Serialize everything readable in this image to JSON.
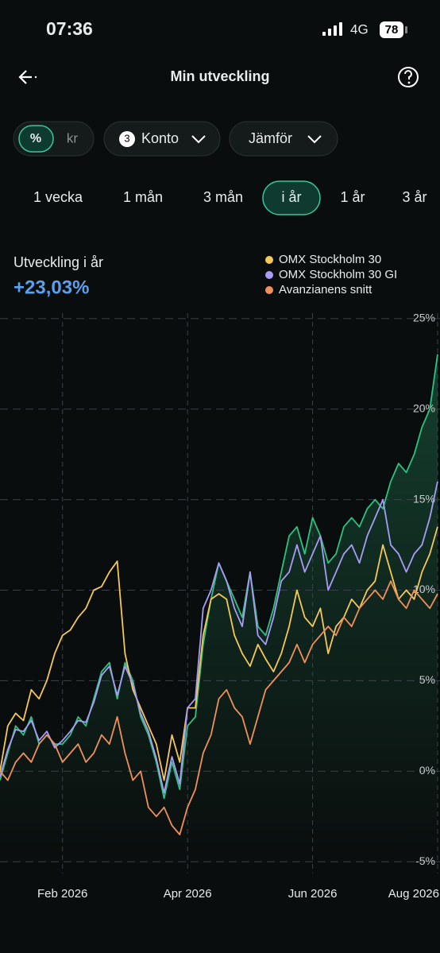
{
  "ui": {
    "status_time": "07:36",
    "network": "4G",
    "battery": "78",
    "title": "Min utveckling",
    "toggle": [
      "%",
      "kr"
    ],
    "account_count": "3",
    "account_label": "Konto",
    "compare_label": "Jämför",
    "periods": [
      "1 vecka",
      "1 mån",
      "3 mån",
      "i år",
      "1 år",
      "3 år"
    ],
    "summary_label": "Utveckling i år",
    "summary_value": "+23,03%"
  },
  "chart_data": {
    "type": "line",
    "categories": [
      null,
      null,
      null,
      null,
      null,
      null,
      null,
      null,
      "Feb 2026",
      null,
      null,
      null,
      null,
      null,
      null,
      null,
      null,
      null,
      null,
      null,
      null,
      null,
      null,
      null,
      "Apr 2026",
      null,
      null,
      null,
      null,
      null,
      null,
      null,
      null,
      null,
      null,
      null,
      null,
      null,
      null,
      null,
      "Jun 2026",
      null,
      null,
      null,
      null,
      null,
      null,
      null,
      null,
      null,
      null,
      null,
      null,
      null,
      null,
      null,
      "Aug 2026"
    ],
    "series": [
      {
        "color": "#2fc082",
        "fill": true,
        "values": [
          -0.5,
          1,
          2.5,
          2,
          3,
          1.5,
          2,
          1.5,
          1.5,
          2,
          3,
          2.5,
          4,
          5.5,
          6,
          4,
          6,
          5,
          3,
          2,
          0.5,
          -1.5,
          0.5,
          -1,
          2.5,
          3,
          7,
          9.5,
          11.5,
          10.5,
          9.5,
          8.5,
          11,
          8,
          7.5,
          9,
          11,
          13,
          13.5,
          12,
          14,
          13,
          11.5,
          12,
          13.5,
          14,
          13.5,
          14.5,
          15,
          14.5,
          16,
          17,
          16.5,
          17.5,
          19,
          20,
          23.03
        ]
      },
      {
        "name": "OMX Stockholm 30",
        "color": "#f5c85a",
        "values": [
          0,
          2.5,
          3.2,
          2.8,
          4.5,
          4,
          5,
          6.5,
          7.5,
          7.8,
          8.5,
          9,
          10,
          10.2,
          11,
          11.6,
          6.5,
          4.5,
          3.5,
          2.5,
          1.5,
          -0.5,
          2,
          0.5,
          3.5,
          3.5,
          7.5,
          9.5,
          9.8,
          9.5,
          7.5,
          6.5,
          5.8,
          7,
          6.2,
          5.5,
          6.5,
          8,
          10,
          8.5,
          8,
          9,
          6.5,
          8,
          8.5,
          9.5,
          9,
          10,
          10.5,
          12.5,
          11,
          9.5,
          10,
          9.5,
          11,
          12,
          13.5
        ]
      },
      {
        "name": "OMX Stockholm 30 GI",
        "color": "#a99cf5",
        "values": [
          -0.3,
          1.2,
          2.3,
          2.2,
          2.8,
          1.7,
          2.2,
          1.3,
          1.7,
          2.2,
          2.8,
          2.7,
          3.8,
          5.3,
          5.8,
          4.2,
          5.8,
          4.8,
          3.2,
          2.2,
          0.7,
          -1.2,
          0.8,
          -0.7,
          3.5,
          4,
          9,
          10,
          11.5,
          10.5,
          9,
          8,
          11,
          7.5,
          7,
          8.5,
          10.5,
          11,
          12.5,
          11,
          12,
          13,
          10,
          11,
          12,
          12.5,
          11.5,
          13,
          14,
          15,
          12.5,
          12,
          11,
          12,
          12.5,
          14,
          16
        ]
      },
      {
        "name": "Avanzianens snitt",
        "color": "#f0905a",
        "values": [
          0,
          -0.5,
          0.5,
          1,
          0.5,
          1.5,
          2,
          1.5,
          0.5,
          1,
          1.5,
          0.5,
          1,
          2,
          1.5,
          3,
          1,
          -0.5,
          0,
          -2,
          -2.5,
          -2,
          -3,
          -3.5,
          -2,
          -1,
          1,
          2,
          4,
          4.5,
          3.5,
          3,
          1.5,
          3,
          4.5,
          5,
          5.5,
          6,
          7,
          6,
          7,
          7.5,
          8,
          7.5,
          8.5,
          8,
          9,
          9.5,
          10,
          9.5,
          10.5,
          9.5,
          9,
          10,
          9.5,
          9,
          9.8
        ]
      }
    ],
    "ylim": [
      -5.3,
      25.3
    ],
    "yticks": [
      {
        "value": -5,
        "label": "-5%"
      },
      {
        "value": 0,
        "label": "0%"
      },
      {
        "value": 5,
        "label": "5%"
      },
      {
        "value": 10,
        "label": "10%"
      },
      {
        "value": 15,
        "label": "15%"
      },
      {
        "value": 20,
        "label": "20%"
      },
      {
        "value": 25,
        "label": "25%"
      }
    ],
    "grid": true
  }
}
